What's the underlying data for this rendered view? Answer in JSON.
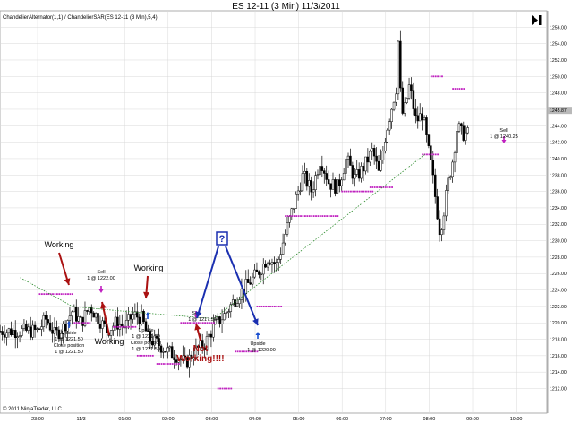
{
  "window_title": "ES 12-11 (3 Min)  11/3/2011",
  "indicators_label": "ChandelierAlternator(1,1) / ChandelierSAR(ES 12-11 (3 Min),5,4)",
  "copyright": "© 2011 NinjaTrader, LLC",
  "toolbar": {
    "forward_icon": "skip-forward-icon"
  },
  "colors": {
    "candle_body": "#000000",
    "sar_dots": "#c020c0",
    "trend_line": "#2a8a2a",
    "axis_grid": "#d8d8d8",
    "red_annotation": "#aa1111",
    "blue_annotation": "#1a2fb0",
    "sell_marker": "#c020c0",
    "buy_marker": "#1a4fd0"
  },
  "chart_data": {
    "type": "candlestick",
    "title": "ES 12-11 (3 Min)  11/3/2011",
    "xlabel": "",
    "ylabel": "",
    "ylim": [
      1209,
      1258
    ],
    "grid": true,
    "y_ticks": [
      1212,
      1214,
      1216,
      1218,
      1220,
      1222,
      1224,
      1226,
      1228,
      1230,
      1232,
      1234,
      1236,
      1238,
      1240,
      1242,
      1244,
      1246,
      1248,
      1250,
      1252,
      1254,
      1256
    ],
    "y_tick_labels": [
      "1212.00",
      "1214.00",
      "1216.00",
      "1218.00",
      "1220.00",
      "1222.00",
      "1224.00",
      "1226.00",
      "1228.00",
      "1230.00",
      "1232.00",
      "1234.00",
      "1236.00",
      "1238.00",
      "1240.00",
      "1242.00",
      "1244.00",
      "1246.00",
      "1248.00",
      "1250.00",
      "1252.00",
      "1254.00",
      "1256.00"
    ],
    "x_ticks": [
      "23:00",
      "11/3",
      "01:00",
      "02:00",
      "03:00",
      "04:00",
      "05:00",
      "06:00",
      "07:00",
      "08:00",
      "09:00",
      "10:00"
    ],
    "price_path": [
      {
        "t": 0,
        "p": 1219.0
      },
      {
        "t": 0.2,
        "p": 1220.5
      },
      {
        "t": 0.4,
        "p": 1218.5
      },
      {
        "t": 0.6,
        "p": 1219.5
      },
      {
        "t": 0.8,
        "p": 1221.5
      },
      {
        "t": 1.0,
        "p": 1220.0
      },
      {
        "t": 1.2,
        "p": 1222.0
      },
      {
        "t": 1.4,
        "p": 1220.5
      },
      {
        "t": 1.6,
        "p": 1219.0
      },
      {
        "t": 1.8,
        "p": 1220.0
      },
      {
        "t": 2.0,
        "p": 1219.5
      },
      {
        "t": 2.2,
        "p": 1221.0
      },
      {
        "t": 2.4,
        "p": 1220.5
      },
      {
        "t": 2.55,
        "p": 1218.0
      },
      {
        "t": 2.75,
        "p": 1217.5
      },
      {
        "t": 3.0,
        "p": 1216.5
      },
      {
        "t": 3.2,
        "p": 1216.0
      },
      {
        "t": 3.4,
        "p": 1215.0
      },
      {
        "t": 3.6,
        "p": 1216.5
      },
      {
        "t": 3.85,
        "p": 1217.5
      },
      {
        "t": 4.05,
        "p": 1219.5
      },
      {
        "t": 4.3,
        "p": 1221.0
      },
      {
        "t": 4.55,
        "p": 1223.0
      },
      {
        "t": 4.8,
        "p": 1224.5
      },
      {
        "t": 5.05,
        "p": 1226.0
      },
      {
        "t": 5.3,
        "p": 1228.0
      },
      {
        "t": 5.5,
        "p": 1227.0
      },
      {
        "t": 5.7,
        "p": 1231.0
      },
      {
        "t": 5.9,
        "p": 1234.5
      },
      {
        "t": 6.1,
        "p": 1238.0
      },
      {
        "t": 6.3,
        "p": 1236.0
      },
      {
        "t": 6.5,
        "p": 1240.0
      },
      {
        "t": 6.7,
        "p": 1237.0
      },
      {
        "t": 6.9,
        "p": 1236.5
      },
      {
        "t": 7.1,
        "p": 1240.0
      },
      {
        "t": 7.3,
        "p": 1237.5
      },
      {
        "t": 7.5,
        "p": 1239.0
      },
      {
        "t": 7.7,
        "p": 1241.0
      },
      {
        "t": 7.85,
        "p": 1238.0
      },
      {
        "t": 8.0,
        "p": 1243.0
      },
      {
        "t": 8.15,
        "p": 1246.5
      },
      {
        "t": 8.3,
        "p": 1250.0
      },
      {
        "t": 8.4,
        "p": 1245.0
      },
      {
        "t": 8.55,
        "p": 1249.0
      },
      {
        "t": 8.7,
        "p": 1244.5
      },
      {
        "t": 8.85,
        "p": 1245.5
      },
      {
        "t": 8.95,
        "p": 1242.0
      },
      {
        "t": 9.05,
        "p": 1239.0
      },
      {
        "t": 9.15,
        "p": 1235.0
      },
      {
        "t": 9.25,
        "p": 1231.0
      },
      {
        "t": 9.35,
        "p": 1234.0
      },
      {
        "t": 9.45,
        "p": 1237.5
      },
      {
        "t": 9.55,
        "p": 1240.0
      },
      {
        "t": 9.65,
        "p": 1244.0
      },
      {
        "t": 9.75,
        "p": 1243.0
      }
    ],
    "sar_segments": [
      {
        "t0": 0.05,
        "t1": 0.85,
        "p": 1223.5
      },
      {
        "t0": 0.85,
        "t1": 1.25,
        "p": 1220.0
      },
      {
        "t0": 1.75,
        "t1": 2.25,
        "p": 1219.5
      },
      {
        "t0": 2.3,
        "t1": 2.65,
        "p": 1216.0
      },
      {
        "t0": 2.75,
        "t1": 3.25,
        "p": 1215.0
      },
      {
        "t0": 3.3,
        "t1": 4.05,
        "p": 1220.0
      },
      {
        "t0": 4.15,
        "t1": 4.45,
        "p": 1212.0
      },
      {
        "t0": 4.55,
        "t1": 5.05,
        "p": 1216.5
      },
      {
        "t0": 5.05,
        "t1": 5.6,
        "p": 1222.0
      },
      {
        "t0": 5.7,
        "t1": 6.9,
        "p": 1233.0
      },
      {
        "t0": 7.0,
        "t1": 7.7,
        "p": 1236.0
      },
      {
        "t0": 7.65,
        "t1": 8.15,
        "p": 1236.5
      },
      {
        "t0": 8.85,
        "t1": 9.25,
        "p": 1240.5
      },
      {
        "t0": 9.05,
        "t1": 9.35,
        "p": 1250.0
      },
      {
        "t0": 9.55,
        "t1": 9.85,
        "p": 1248.5
      }
    ],
    "trend_line": [
      {
        "t": -0.4,
        "p": 1225.5
      },
      {
        "t": 0.8,
        "p": 1222.0
      },
      {
        "t": 1.8,
        "p": 1221.5
      },
      {
        "t": 4.05,
        "p": 1220.5
      },
      {
        "t": 8.9,
        "p": 1240.5
      }
    ],
    "last_price": "1245.87",
    "current_price": "1244.00",
    "annotations": {
      "working_1": "Working",
      "working_2": "Working",
      "working_3": "Working",
      "not_working": "Not Working!!!!",
      "question": "?"
    },
    "trade_labels": {
      "upside_1": "Upside",
      "upside_1_fill": "1 @ 1221.50",
      "close_position_1": "Close position",
      "close_position_1_fill": "1 @ 1221.50",
      "sell_1": "Sell",
      "sell_1_fill": "1 @ 1222.00",
      "upside_2": "Upside",
      "upside_2_fill": "1 @ 1221.50",
      "close_position_2": "Close position",
      "close_position_2_fill": "1 @ 1221.50",
      "sell_2": "Sell",
      "sell_2_fill": "1 @ 1217.50",
      "upside_3": "Upside",
      "upside_3_fill": "1 @ 1220.00",
      "sell_3": "Sell",
      "sell_3_fill": "1 @ 1240.25"
    }
  }
}
